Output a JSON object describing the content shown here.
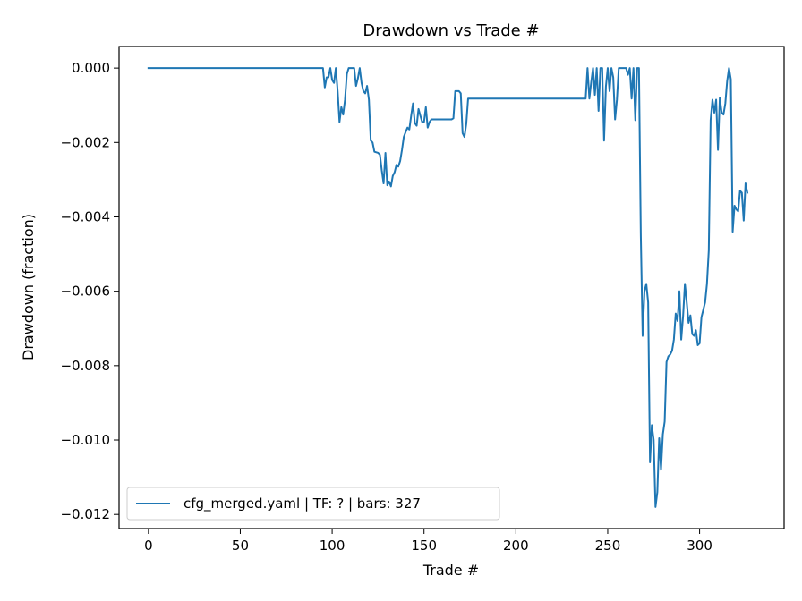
{
  "chart_data": {
    "type": "line",
    "title": "Drawdown vs Trade #",
    "xlabel": "Trade #",
    "ylabel": "Drawdown (fraction)",
    "xlim": [
      -16,
      346
    ],
    "ylim": [
      -0.01238,
      0.00058
    ],
    "xticks": [
      0,
      50,
      100,
      150,
      200,
      250,
      300
    ],
    "xtick_labels": [
      "0",
      "50",
      "100",
      "150",
      "200",
      "250",
      "300"
    ],
    "yticks": [
      0.0,
      -0.002,
      -0.004,
      -0.006,
      -0.008,
      -0.01,
      -0.012
    ],
    "ytick_labels": [
      "0.000",
      "−0.002",
      "−0.004",
      "−0.006",
      "−0.008",
      "−0.010",
      "−0.012"
    ],
    "grid": false,
    "legend_position": "bottom-left",
    "color": "#1f77b4",
    "series": [
      {
        "name": "cfg_merged.yaml | TF: ? | bars: 327",
        "points": [
          [
            0,
            0.0
          ],
          [
            95,
            0.0
          ],
          [
            96,
            -0.00052
          ],
          [
            97,
            -0.00025
          ],
          [
            98,
            -0.00025
          ],
          [
            99,
            0.0
          ],
          [
            100,
            -0.00032
          ],
          [
            101,
            -0.0004
          ],
          [
            102,
            0.0
          ],
          [
            103,
            -0.00063
          ],
          [
            104,
            -0.00145
          ],
          [
            105,
            -0.00105
          ],
          [
            106,
            -0.00125
          ],
          [
            107,
            -0.00085
          ],
          [
            108,
            -0.00016
          ],
          [
            109,
            0.0
          ],
          [
            112,
            0.0
          ],
          [
            113,
            -0.00048
          ],
          [
            114,
            -0.00028
          ],
          [
            115,
            0.0
          ],
          [
            116,
            -0.0004
          ],
          [
            117,
            -0.00062
          ],
          [
            118,
            -0.00068
          ],
          [
            119,
            -0.00048
          ],
          [
            120,
            -0.00085
          ],
          [
            121,
            -0.00195
          ],
          [
            122,
            -0.002
          ],
          [
            123,
            -0.00225
          ],
          [
            125,
            -0.00228
          ],
          [
            126,
            -0.00233
          ],
          [
            127,
            -0.00275
          ],
          [
            128,
            -0.0031
          ],
          [
            129,
            -0.00228
          ],
          [
            130,
            -0.00315
          ],
          [
            131,
            -0.00305
          ],
          [
            132,
            -0.00318
          ],
          [
            133,
            -0.0029
          ],
          [
            134,
            -0.0028
          ],
          [
            135,
            -0.0026
          ],
          [
            136,
            -0.00265
          ],
          [
            137,
            -0.0025
          ],
          [
            138,
            -0.0022
          ],
          [
            139,
            -0.00185
          ],
          [
            140,
            -0.00172
          ],
          [
            141,
            -0.0016
          ],
          [
            142,
            -0.00165
          ],
          [
            143,
            -0.00128
          ],
          [
            144,
            -0.00095
          ],
          [
            145,
            -0.00148
          ],
          [
            146,
            -0.00155
          ],
          [
            147,
            -0.0011
          ],
          [
            148,
            -0.00128
          ],
          [
            149,
            -0.00145
          ],
          [
            150,
            -0.00145
          ],
          [
            151,
            -0.00105
          ],
          [
            152,
            -0.0016
          ],
          [
            153,
            -0.00145
          ],
          [
            154,
            -0.00138
          ],
          [
            165,
            -0.00138
          ],
          [
            166,
            -0.00135
          ],
          [
            167,
            -0.00062
          ],
          [
            169,
            -0.00062
          ],
          [
            170,
            -0.00068
          ],
          [
            171,
            -0.00175
          ],
          [
            172,
            -0.00185
          ],
          [
            173,
            -0.0015
          ],
          [
            174,
            -0.00082
          ],
          [
            238,
            -0.00082
          ],
          [
            239,
            0.0
          ],
          [
            240,
            -0.00082
          ],
          [
            241,
            -0.00038
          ],
          [
            242,
            0.0
          ],
          [
            243,
            -0.00072
          ],
          [
            244,
            0.0
          ],
          [
            245,
            -0.00115
          ],
          [
            246,
            0.0
          ],
          [
            247,
            0.0
          ],
          [
            248,
            -0.00195
          ],
          [
            249,
            -0.0005
          ],
          [
            250,
            0.0
          ],
          [
            251,
            -0.00062
          ],
          [
            252,
            0.0
          ],
          [
            253,
            -0.00025
          ],
          [
            254,
            -0.00138
          ],
          [
            255,
            -0.00085
          ],
          [
            256,
            0.0
          ],
          [
            260,
            0.0
          ],
          [
            261,
            -0.00018
          ],
          [
            262,
            0.0
          ],
          [
            263,
            -0.00082
          ],
          [
            264,
            0.0
          ],
          [
            265,
            -0.0014
          ],
          [
            266,
            0.0
          ],
          [
            267,
            0.0
          ],
          [
            268,
            -0.0045
          ],
          [
            269,
            -0.0072
          ],
          [
            270,
            -0.006
          ],
          [
            271,
            -0.0058
          ],
          [
            272,
            -0.0063
          ],
          [
            273,
            -0.0106
          ],
          [
            274,
            -0.0096
          ],
          [
            275,
            -0.01
          ],
          [
            276,
            -0.0118
          ],
          [
            277,
            -0.0114
          ],
          [
            278,
            -0.00995
          ],
          [
            279,
            -0.0108
          ],
          [
            280,
            -0.00985
          ],
          [
            281,
            -0.0095
          ],
          [
            282,
            -0.0079
          ],
          [
            283,
            -0.00775
          ],
          [
            284,
            -0.0077
          ],
          [
            285,
            -0.0076
          ],
          [
            286,
            -0.0073
          ],
          [
            287,
            -0.0066
          ],
          [
            288,
            -0.0068
          ],
          [
            289,
            -0.006
          ],
          [
            290,
            -0.0073
          ],
          [
            291,
            -0.00668
          ],
          [
            292,
            -0.0058
          ],
          [
            293,
            -0.0063
          ],
          [
            294,
            -0.00685
          ],
          [
            295,
            -0.00665
          ],
          [
            296,
            -0.00715
          ],
          [
            297,
            -0.0072
          ],
          [
            298,
            -0.00705
          ],
          [
            299,
            -0.00745
          ],
          [
            300,
            -0.0074
          ],
          [
            301,
            -0.0067
          ],
          [
            302,
            -0.0065
          ],
          [
            303,
            -0.0063
          ],
          [
            304,
            -0.0058
          ],
          [
            305,
            -0.0049
          ],
          [
            306,
            -0.0014
          ],
          [
            307,
            -0.00085
          ],
          [
            308,
            -0.0012
          ],
          [
            309,
            -0.00085
          ],
          [
            310,
            -0.0022
          ],
          [
            311,
            -0.0008
          ],
          [
            312,
            -0.0012
          ],
          [
            313,
            -0.00125
          ],
          [
            314,
            -0.00095
          ],
          [
            315,
            -0.00035
          ],
          [
            316,
            0.0
          ],
          [
            317,
            -0.0003
          ],
          [
            318,
            -0.0044
          ],
          [
            319,
            -0.0037
          ],
          [
            320,
            -0.0038
          ],
          [
            321,
            -0.00385
          ],
          [
            322,
            -0.0033
          ],
          [
            323,
            -0.00335
          ],
          [
            324,
            -0.0041
          ],
          [
            325,
            -0.0031
          ],
          [
            326,
            -0.00335
          ]
        ]
      }
    ]
  }
}
